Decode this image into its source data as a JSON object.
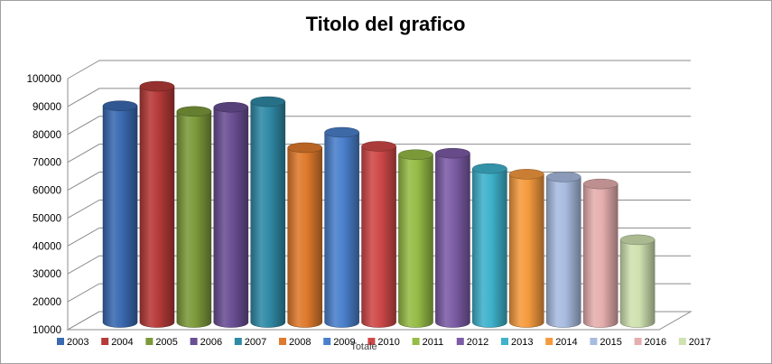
{
  "chart_data": {
    "type": "bar",
    "title": "Titolo del grafico",
    "xlabel": "Totale",
    "ylabel": "",
    "ylim": [
      10000,
      100000
    ],
    "yticks": [
      10000,
      20000,
      30000,
      40000,
      50000,
      60000,
      70000,
      80000,
      90000,
      100000
    ],
    "grid": true,
    "legend_position": "bottom",
    "categories": [
      "Totale"
    ],
    "series": [
      {
        "name": "2003",
        "values": [
          87000
        ],
        "color": "#3a6ab2"
      },
      {
        "name": "2004",
        "values": [
          94000
        ],
        "color": "#b53a38"
      },
      {
        "name": "2005",
        "values": [
          85000
        ],
        "color": "#7c9a3a"
      },
      {
        "name": "2006",
        "values": [
          86500
        ],
        "color": "#6a4f94"
      },
      {
        "name": "2007",
        "values": [
          88500
        ],
        "color": "#2f8aa6"
      },
      {
        "name": "2008",
        "values": [
          72000
        ],
        "color": "#df7a2c"
      },
      {
        "name": "2009",
        "values": [
          77500
        ],
        "color": "#4a80cc"
      },
      {
        "name": "2010",
        "values": [
          72500
        ],
        "color": "#cf4848"
      },
      {
        "name": "2011",
        "values": [
          69500
        ],
        "color": "#95bc46"
      },
      {
        "name": "2012",
        "values": [
          70000
        ],
        "color": "#7c5ca6"
      },
      {
        "name": "2013",
        "values": [
          64500
        ],
        "color": "#3eb2cc"
      },
      {
        "name": "2014",
        "values": [
          62500
        ],
        "color": "#f59a3e"
      },
      {
        "name": "2015",
        "values": [
          61500
        ],
        "color": "#a8bce0"
      },
      {
        "name": "2016",
        "values": [
          59000
        ],
        "color": "#e6aeae"
      },
      {
        "name": "2017",
        "values": [
          39000
        ],
        "color": "#cfe2b0"
      }
    ]
  }
}
